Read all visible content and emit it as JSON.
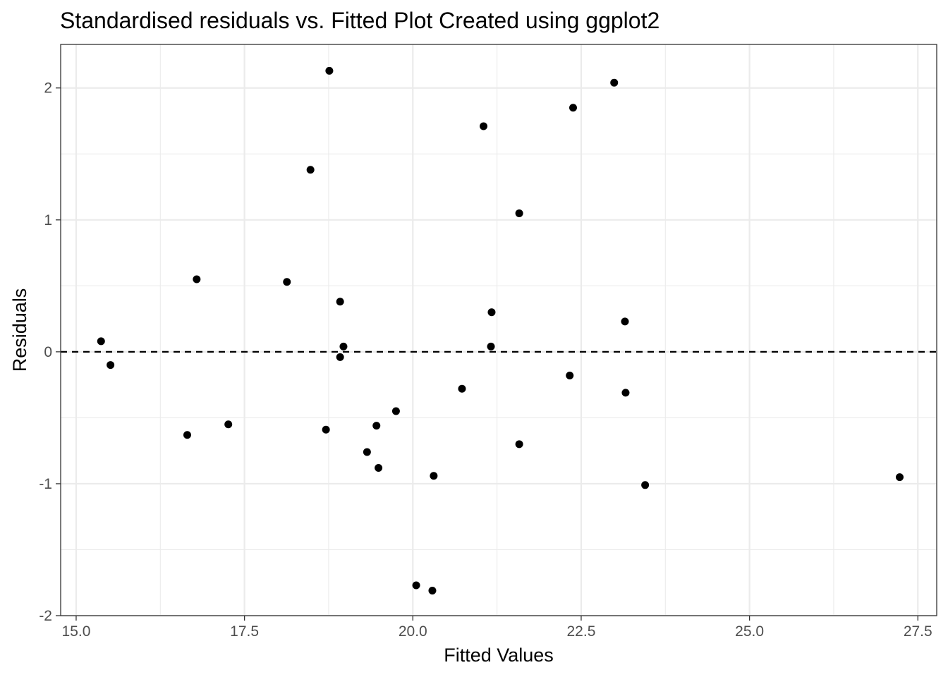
{
  "chart_data": {
    "type": "scatter",
    "title": "Standardised residuals vs. Fitted Plot Created using ggplot2",
    "xlabel": "Fitted Values",
    "ylabel": "Residuals",
    "xlim": [
      14.77,
      27.78
    ],
    "ylim": [
      -2.0,
      2.33
    ],
    "x_ticks": [
      15.0,
      17.5,
      20.0,
      22.5,
      25.0,
      27.5
    ],
    "x_tick_labels": [
      "15.0",
      "17.5",
      "20.0",
      "22.5",
      "25.0",
      "27.5"
    ],
    "y_ticks": [
      -2,
      -1,
      0,
      1,
      2
    ],
    "y_tick_labels": [
      "-2",
      "-1",
      "0",
      "1",
      "2"
    ],
    "reference_line": {
      "y": 0,
      "style": "dashed"
    },
    "grid": true,
    "point_color": "#000000",
    "points": [
      {
        "x": 15.37,
        "y": 0.08
      },
      {
        "x": 15.51,
        "y": -0.1
      },
      {
        "x": 16.65,
        "y": -0.63
      },
      {
        "x": 16.79,
        "y": 0.55
      },
      {
        "x": 17.26,
        "y": -0.55
      },
      {
        "x": 18.13,
        "y": 0.53
      },
      {
        "x": 18.48,
        "y": 1.38
      },
      {
        "x": 18.71,
        "y": -0.59
      },
      {
        "x": 18.76,
        "y": 2.13
      },
      {
        "x": 18.92,
        "y": 0.38
      },
      {
        "x": 18.92,
        "y": -0.04
      },
      {
        "x": 18.97,
        "y": 0.04
      },
      {
        "x": 19.32,
        "y": -0.76
      },
      {
        "x": 19.46,
        "y": -0.56
      },
      {
        "x": 19.49,
        "y": -0.88
      },
      {
        "x": 19.75,
        "y": -0.45
      },
      {
        "x": 20.05,
        "y": -1.77
      },
      {
        "x": 20.29,
        "y": -1.81
      },
      {
        "x": 20.31,
        "y": -0.94
      },
      {
        "x": 20.73,
        "y": -0.28
      },
      {
        "x": 21.05,
        "y": 1.71
      },
      {
        "x": 21.17,
        "y": 0.3
      },
      {
        "x": 21.16,
        "y": 0.04
      },
      {
        "x": 21.58,
        "y": 1.05
      },
      {
        "x": 21.58,
        "y": -0.7
      },
      {
        "x": 22.33,
        "y": -0.18
      },
      {
        "x": 22.38,
        "y": 1.85
      },
      {
        "x": 22.99,
        "y": 2.04
      },
      {
        "x": 23.15,
        "y": 0.23
      },
      {
        "x": 23.16,
        "y": -0.31
      },
      {
        "x": 23.45,
        "y": -1.01
      },
      {
        "x": 27.23,
        "y": -0.95
      }
    ]
  }
}
